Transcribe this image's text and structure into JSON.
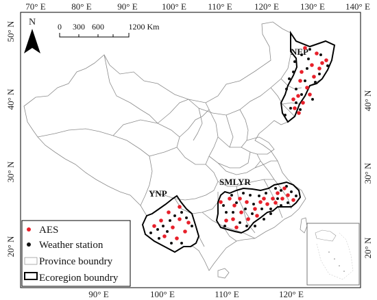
{
  "map": {
    "north_arrow_label": "N",
    "scale_bar": {
      "labels": [
        "0",
        "300",
        "600",
        "1200 Km"
      ]
    },
    "top_ticks": [
      "70° E",
      "80° E",
      "90° E",
      "100° E",
      "110° E",
      "120° E",
      "130° E",
      "140° E"
    ],
    "bottom_ticks": [
      "90° E",
      "100° E",
      "110° E",
      "120° E"
    ],
    "left_ticks": [
      "50° N",
      "40° N",
      "30° N",
      "20° N"
    ],
    "right_ticks": [
      "40° N",
      "30° N",
      "20° N"
    ],
    "regions": {
      "nep": "NEP",
      "smlyr": "SMLYR",
      "ynp": "YNP"
    },
    "legend": {
      "aes": "AES",
      "weather_station": "Weather station",
      "province_boundary": "Province boundry",
      "ecoregion_boundary": "Ecoregion boundry"
    },
    "colors": {
      "aes": "#e8202a",
      "weather_station": "#111111",
      "province_line": "#888888",
      "ecoregion_line": "#000000"
    }
  }
}
